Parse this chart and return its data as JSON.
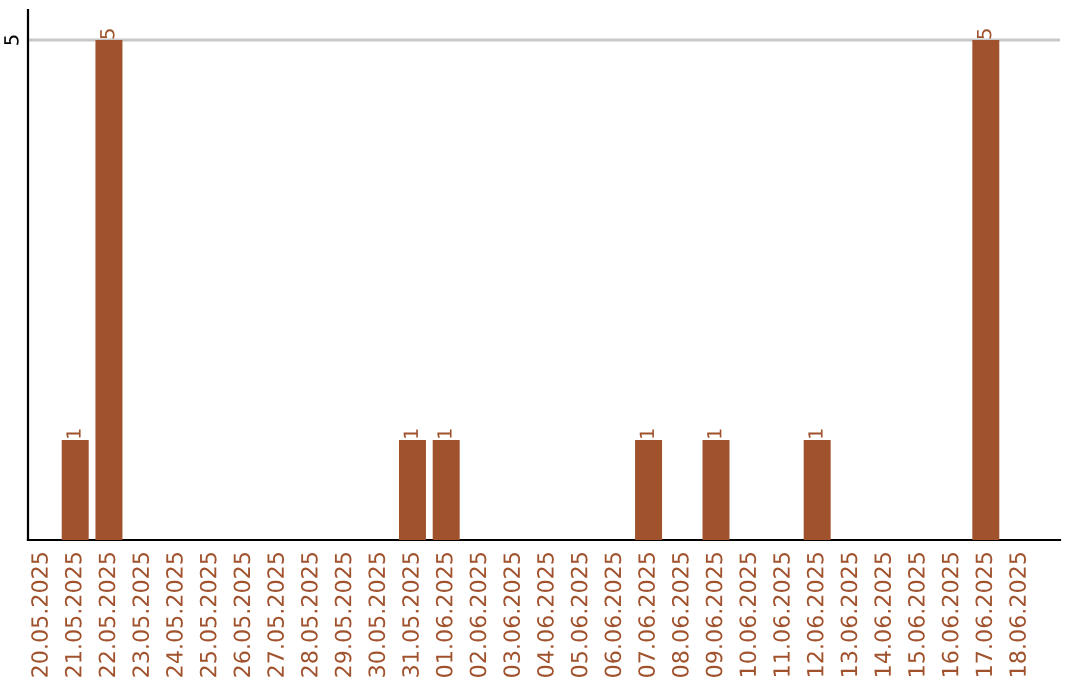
{
  "chart_data": {
    "type": "bar",
    "categories": [
      "20.05.2025",
      "21.05.2025",
      "22.05.2025",
      "23.05.2025",
      "24.05.2025",
      "25.05.2025",
      "26.05.2025",
      "27.05.2025",
      "28.05.2025",
      "29.05.2025",
      "30.05.2025",
      "31.05.2025",
      "01.06.2025",
      "02.06.2025",
      "03.06.2025",
      "04.06.2025",
      "05.06.2025",
      "06.06.2025",
      "07.06.2025",
      "08.06.2025",
      "09.06.2025",
      "10.06.2025",
      "11.06.2025",
      "12.06.2025",
      "13.06.2025",
      "14.06.2025",
      "15.06.2025",
      "16.06.2025",
      "17.06.2025",
      "18.06.2025"
    ],
    "values": [
      0,
      1,
      5,
      0,
      0,
      0,
      0,
      0,
      0,
      0,
      0,
      1,
      1,
      0,
      0,
      0,
      0,
      0,
      1,
      0,
      1,
      0,
      0,
      1,
      0,
      0,
      0,
      0,
      5,
      0
    ],
    "color": "#a0522d",
    "value_labels": [
      null,
      "1",
      "5",
      null,
      null,
      null,
      null,
      null,
      null,
      null,
      null,
      "1",
      "1",
      null,
      null,
      null,
      null,
      null,
      "1",
      null,
      "1",
      null,
      null,
      "1",
      null,
      null,
      null,
      null,
      "5",
      null
    ],
    "ylim": [
      0,
      5.3
    ],
    "yticks": [
      5
    ],
    "grid": "y",
    "legend": false
  }
}
